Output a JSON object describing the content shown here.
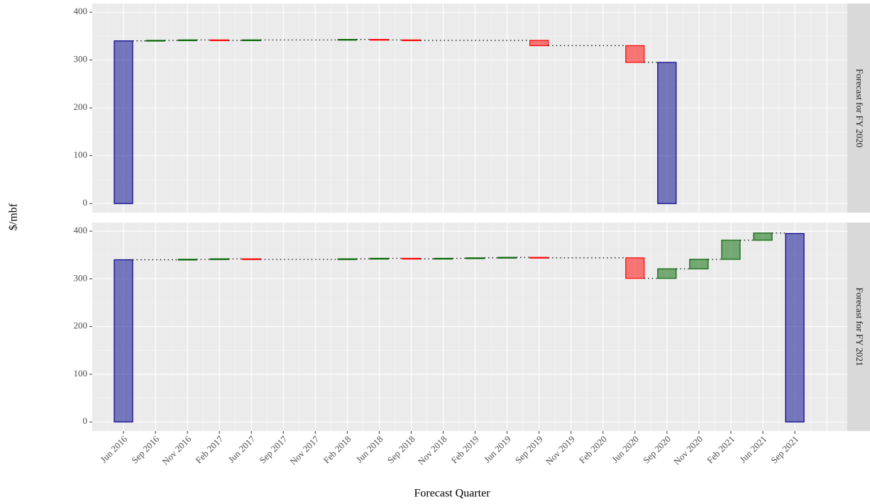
{
  "chart_data": {
    "type": "waterfall",
    "xlabel": "Forecast Quarter",
    "ylabel": "$/mbf",
    "categories": [
      "Jun 2016",
      "Sep 2016",
      "Nov 2016",
      "Feb 2017",
      "Jun 2017",
      "Sep 2017",
      "Nov 2017",
      "Feb 2018",
      "Jun 2018",
      "Sep 2018",
      "Nov 2018",
      "Feb 2019",
      "Jun 2019",
      "Sep 2019",
      "Nov 2019",
      "Feb 2020",
      "Jun 2020",
      "Sep 2020",
      "Nov 2020",
      "Feb 2021",
      "Jun 2021",
      "Sep 2021"
    ],
    "ylim": [
      -19,
      418
    ],
    "yticks": [
      0,
      100,
      200,
      300,
      400
    ],
    "grid": true,
    "colors": {
      "total": "#00008b",
      "increase": "#006400",
      "decrease": "#ff0000"
    },
    "facets": [
      {
        "label": "Forecast for FY 2020",
        "values": [
          340,
          1,
          1,
          -1,
          1,
          null,
          null,
          1,
          -1,
          -1,
          null,
          null,
          null,
          -11,
          null,
          null,
          -35,
          295,
          null,
          null,
          null,
          null
        ]
      },
      {
        "label": "Forecast for FY 2021",
        "values": [
          340,
          null,
          1,
          1,
          -1,
          null,
          null,
          1,
          1,
          -1,
          1,
          1,
          1,
          -1,
          null,
          null,
          -43,
          20,
          20,
          40,
          15,
          395
        ]
      }
    ]
  }
}
